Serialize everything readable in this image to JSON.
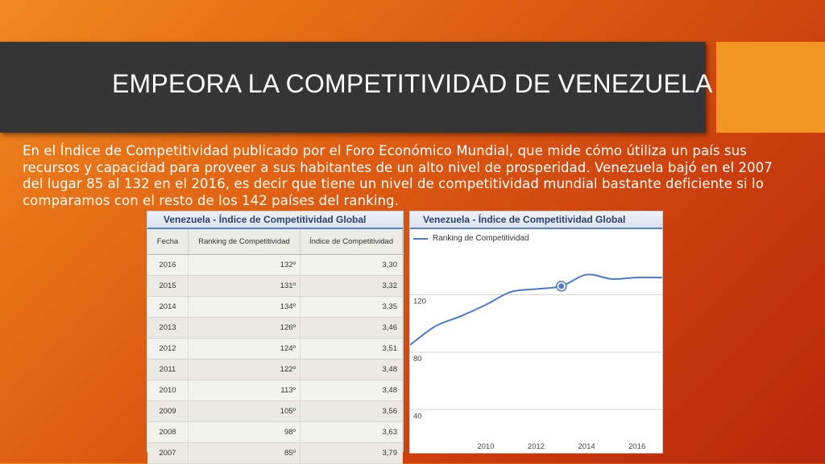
{
  "slide": {
    "title": "EMPEORA LA COMPETITIVIDAD DE VENEZUELA",
    "body_lines": [
      "En el Índice de Competitividad publicado por el Foro Económico Mundial, que mide cómo útiliza un país sus",
      "recursos y capacidad para proveer a sus habitantes de un alto nivel de prosperidad. Venezuela  bajó en el 2007",
      "del lugar 85 al 132 en el 2016, es decir que tiene un nivel de competitividad mundial bastante deficiente si lo",
      "comparamos con el resto de los 142 países del ranking."
    ],
    "colors": {
      "title_bar": "#353535",
      "accent": "#f29522",
      "line": "#4d79c7"
    }
  },
  "table": {
    "title": "Venezuela - Índice de Competitividad Global",
    "headers": [
      "Fecha",
      "Ranking de Competitividad",
      "Índice de Competitividad"
    ],
    "rows": [
      [
        "2016",
        "132º",
        "3,30"
      ],
      [
        "2015",
        "131º",
        "3,32"
      ],
      [
        "2014",
        "134º",
        "3,35"
      ],
      [
        "2013",
        "126º",
        "3,46"
      ],
      [
        "2012",
        "124º",
        "3,51"
      ],
      [
        "2011",
        "122º",
        "3,48"
      ],
      [
        "2010",
        "113º",
        "3,48"
      ],
      [
        "2009",
        "105º",
        "3,56"
      ],
      [
        "2008",
        "98º",
        "3,63"
      ],
      [
        "2007",
        "85º",
        "3,79"
      ]
    ]
  },
  "chart_data": {
    "type": "line",
    "title": "Venezuela - Índice de Competitividad Global",
    "series": [
      {
        "name": "Ranking de Competitividad",
        "x": [
          2007,
          2008,
          2009,
          2010,
          2011,
          2012,
          2013,
          2014,
          2015,
          2016,
          2017
        ],
        "values": [
          85,
          98,
          105,
          113,
          122,
          124,
          126,
          134,
          131,
          132,
          132
        ]
      }
    ],
    "highlight_point": {
      "x": 2013,
      "y": 126
    },
    "x_ticks": [
      "2010",
      "2012",
      "2014",
      "2016"
    ],
    "y_ticks": [
      "40",
      "80",
      "120"
    ],
    "xlim": [
      2007,
      2017
    ],
    "ylim": [
      20,
      150
    ],
    "grid": true,
    "legend": "top-left"
  }
}
